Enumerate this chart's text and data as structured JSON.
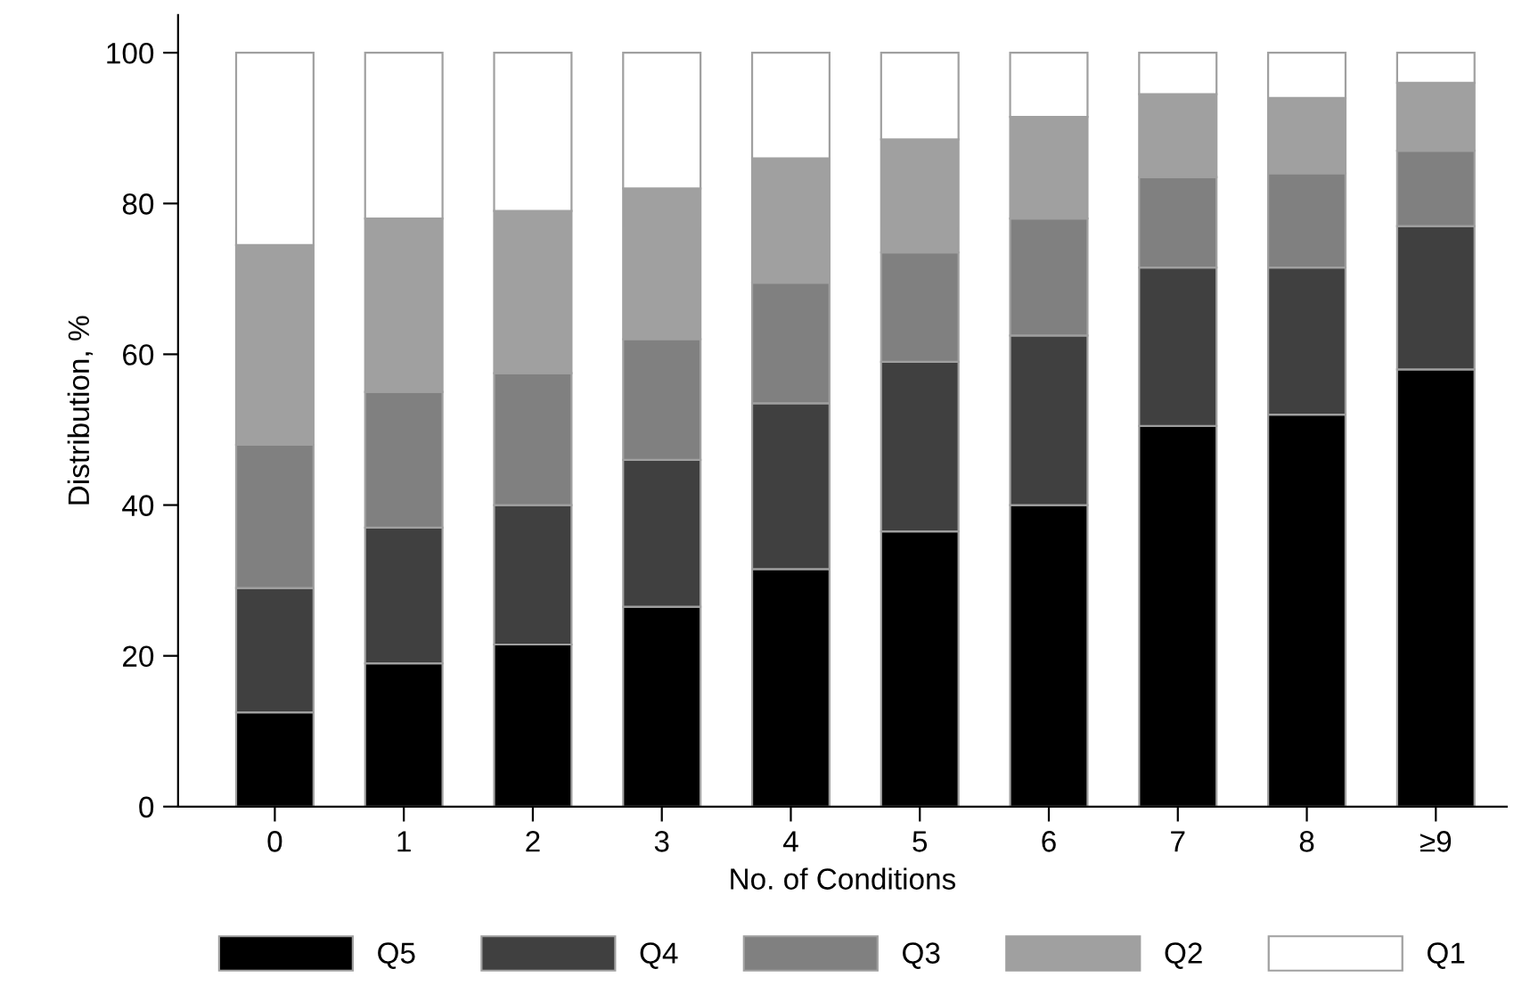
{
  "chart_data": {
    "type": "bar",
    "stacked": true,
    "xlabel": "No. of Conditions",
    "ylabel": "Distribution, %",
    "categories": [
      "0",
      "1",
      "2",
      "3",
      "4",
      "5",
      "6",
      "7",
      "8",
      "≥9"
    ],
    "series": [
      {
        "name": "Q5",
        "color": "#000000",
        "values": [
          12.5,
          19,
          21.5,
          26.5,
          31.5,
          36.5,
          40,
          50.5,
          52,
          58
        ]
      },
      {
        "name": "Q4",
        "color": "#404040",
        "values": [
          16.5,
          18,
          18.5,
          19.5,
          22,
          22.5,
          22.5,
          21,
          19.5,
          19
        ]
      },
      {
        "name": "Q3",
        "color": "#808080",
        "values": [
          19,
          18,
          17.5,
          16,
          16,
          14.5,
          15.5,
          12,
          12.5,
          10
        ]
      },
      {
        "name": "Q2",
        "color": "#a0a0a0",
        "values": [
          26.5,
          23,
          21.5,
          20,
          16.5,
          15,
          13.5,
          11,
          10,
          9
        ]
      },
      {
        "name": "Q1",
        "color": "#ffffff",
        "values": [
          25.5,
          22,
          21,
          18,
          14,
          11.5,
          8.5,
          5.5,
          6,
          4
        ]
      }
    ],
    "ylim": [
      0,
      105
    ],
    "yticks": [
      0,
      20,
      40,
      60,
      80,
      100
    ],
    "grid": false,
    "legend": "bottom"
  }
}
